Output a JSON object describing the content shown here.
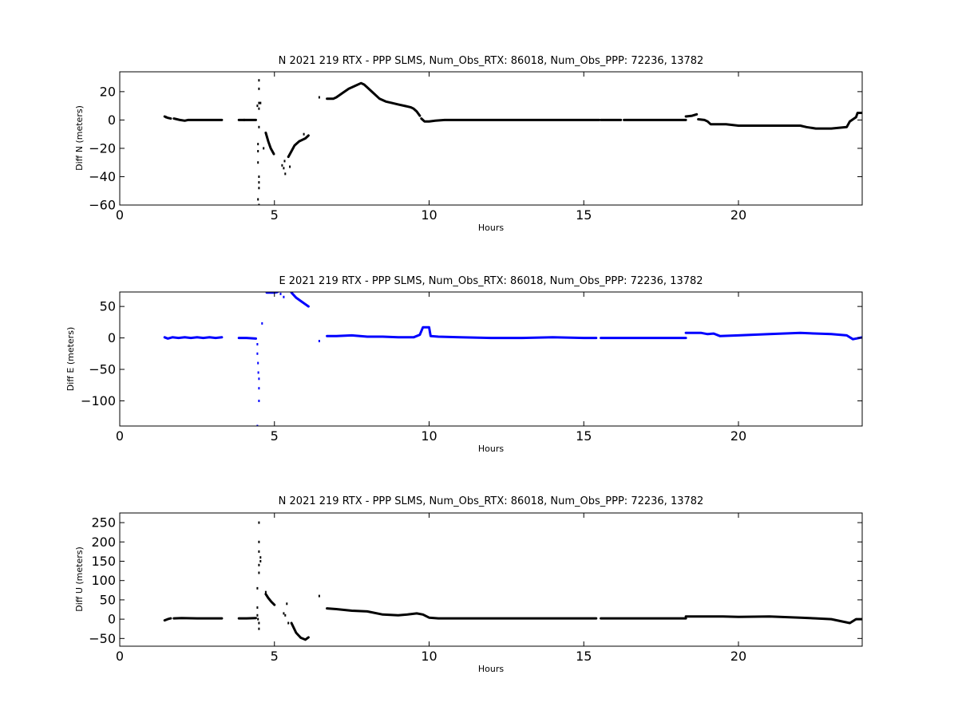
{
  "chart_data": [
    {
      "type": "scatter",
      "title": "N 2021 219 RTX - PPP  SLMS, Num_Obs_RTX: 86018, Num_Obs_PPP: 72236, 13782",
      "xlabel": "Hours",
      "ylabel": "Diff N (meters)",
      "xlim": [
        0,
        24
      ],
      "ylim": [
        -60,
        34
      ],
      "xticks": [
        0,
        5,
        10,
        15,
        20
      ],
      "xtick_labels": [
        "0",
        "5",
        "10",
        "15",
        "20"
      ],
      "yticks": [
        20,
        0,
        -20,
        -40,
        -60
      ],
      "ytick_labels": [
        "20",
        "0",
        "−20",
        "−40",
        "−60"
      ],
      "grid": false,
      "color": "#000000",
      "segments": [
        [
          [
            1.45,
            2.5
          ],
          [
            1.55,
            1.5
          ],
          [
            1.65,
            1.0
          ]
        ],
        [
          [
            1.75,
            1.0
          ],
          [
            1.85,
            0.5
          ],
          [
            1.95,
            0.0
          ],
          [
            2.1,
            -0.5
          ],
          [
            2.2,
            0.0
          ],
          [
            2.4,
            0.0
          ],
          [
            2.7,
            0.0
          ],
          [
            3.0,
            0.0
          ],
          [
            3.3,
            0.0
          ]
        ],
        [
          [
            3.85,
            0.0
          ],
          [
            4.1,
            0.0
          ],
          [
            4.4,
            0.0
          ]
        ],
        [
          [
            4.72,
            -9
          ],
          [
            4.8,
            -15
          ],
          [
            4.88,
            -20
          ],
          [
            4.98,
            -24
          ]
        ],
        [
          [
            5.45,
            -26
          ],
          [
            5.55,
            -22
          ],
          [
            5.65,
            -18
          ],
          [
            5.8,
            -15
          ],
          [
            6.0,
            -13
          ],
          [
            6.1,
            -11
          ]
        ],
        [
          [
            6.7,
            15
          ],
          [
            6.9,
            15
          ],
          [
            7.0,
            16
          ],
          [
            7.2,
            19
          ],
          [
            7.4,
            22
          ],
          [
            7.6,
            24
          ],
          [
            7.8,
            26
          ],
          [
            7.9,
            25
          ],
          [
            8.0,
            23
          ],
          [
            8.2,
            19
          ],
          [
            8.4,
            15
          ],
          [
            8.6,
            13
          ],
          [
            8.8,
            12
          ],
          [
            9.0,
            11
          ],
          [
            9.2,
            10
          ],
          [
            9.4,
            9
          ],
          [
            9.5,
            8
          ],
          [
            9.6,
            6
          ],
          [
            9.7,
            3
          ]
        ],
        [
          [
            9.75,
            1
          ],
          [
            9.85,
            -1
          ],
          [
            10.0,
            -1
          ],
          [
            10.2,
            -0.5
          ],
          [
            10.5,
            0
          ],
          [
            11,
            0
          ],
          [
            12,
            0
          ],
          [
            13,
            0
          ],
          [
            14,
            0
          ],
          [
            15,
            0
          ],
          [
            15.5,
            0
          ]
        ],
        [
          [
            15.55,
            0
          ],
          [
            16.0,
            0
          ],
          [
            16.2,
            0
          ]
        ],
        [
          [
            16.3,
            0
          ],
          [
            17,
            0
          ],
          [
            18,
            0
          ],
          [
            18.3,
            0
          ]
        ],
        [
          [
            18.3,
            2.5
          ],
          [
            18.5,
            3
          ],
          [
            18.65,
            4
          ]
        ],
        [
          [
            18.7,
            0.5
          ],
          [
            18.9,
            0
          ],
          [
            19.0,
            -1
          ],
          [
            19.1,
            -3
          ],
          [
            19.6,
            -3
          ],
          [
            20.0,
            -4
          ],
          [
            21,
            -4
          ],
          [
            22,
            -4
          ],
          [
            22.2,
            -5
          ],
          [
            22.5,
            -6
          ],
          [
            23,
            -6
          ],
          [
            23.5,
            -5
          ],
          [
            23.6,
            -1
          ],
          [
            23.8,
            2
          ],
          [
            23.85,
            5
          ],
          [
            24.0,
            5
          ]
        ]
      ],
      "scatter": [
        [
          1.5,
          2
        ],
        [
          4.02,
          0
        ],
        [
          4.5,
          28
        ],
        [
          4.5,
          22
        ],
        [
          4.5,
          12
        ],
        [
          4.45,
          10
        ],
        [
          4.5,
          8
        ],
        [
          4.55,
          12
        ],
        [
          4.5,
          -5
        ],
        [
          4.47,
          -17
        ],
        [
          4.47,
          -22
        ],
        [
          4.47,
          -30
        ],
        [
          4.5,
          -40
        ],
        [
          4.5,
          -44
        ],
        [
          4.5,
          -48
        ],
        [
          4.47,
          -56
        ],
        [
          4.5,
          -60
        ],
        [
          4.65,
          -20
        ],
        [
          5.25,
          -32
        ],
        [
          5.3,
          -34
        ],
        [
          5.33,
          -29
        ],
        [
          5.35,
          -38
        ],
        [
          5.5,
          -33
        ],
        [
          5.95,
          -10
        ],
        [
          6.45,
          16
        ]
      ]
    },
    {
      "type": "scatter",
      "title": "E 2021 219 RTX - PPP  SLMS, Num_Obs_RTX: 86018, Num_Obs_PPP: 72236, 13782",
      "xlabel": "Hours",
      "ylabel": "Diff E (meters)",
      "xlim": [
        0,
        24
      ],
      "ylim": [
        -140,
        73
      ],
      "xticks": [
        0,
        5,
        10,
        15,
        20
      ],
      "xtick_labels": [
        "0",
        "5",
        "10",
        "15",
        "20"
      ],
      "yticks": [
        50,
        0,
        -50,
        -100
      ],
      "ytick_labels": [
        "50",
        "0",
        "−50",
        "−100"
      ],
      "grid": false,
      "color": "#0000ff",
      "segments": [
        [
          [
            1.45,
            1
          ],
          [
            1.55,
            -1
          ],
          [
            1.7,
            1
          ],
          [
            1.9,
            0
          ],
          [
            2.1,
            1
          ],
          [
            2.3,
            0
          ],
          [
            2.5,
            1
          ],
          [
            2.7,
            0
          ],
          [
            2.9,
            1
          ],
          [
            3.1,
            0
          ],
          [
            3.3,
            1
          ]
        ],
        [
          [
            3.85,
            0
          ],
          [
            4.1,
            0
          ],
          [
            4.4,
            -1
          ]
        ],
        [
          [
            4.75,
            72
          ],
          [
            5.0,
            72
          ],
          [
            5.1,
            73
          ]
        ],
        [
          [
            5.55,
            72
          ],
          [
            5.7,
            64
          ],
          [
            5.9,
            57
          ],
          [
            6.1,
            50
          ]
        ],
        [
          [
            6.7,
            3
          ],
          [
            7.0,
            3
          ],
          [
            7.5,
            4
          ],
          [
            8.0,
            2
          ],
          [
            8.5,
            2
          ],
          [
            9.0,
            1
          ],
          [
            9.5,
            1
          ],
          [
            9.7,
            5
          ],
          [
            9.8,
            17
          ],
          [
            10.0,
            17
          ],
          [
            10.05,
            3
          ],
          [
            10.3,
            2
          ],
          [
            11,
            1
          ],
          [
            12,
            0
          ],
          [
            13,
            0
          ],
          [
            14,
            1
          ],
          [
            15,
            0
          ],
          [
            15.4,
            0
          ]
        ],
        [
          [
            15.55,
            0
          ],
          [
            16,
            0
          ],
          [
            17,
            0
          ],
          [
            18,
            0
          ],
          [
            18.3,
            0
          ]
        ],
        [
          [
            18.3,
            8
          ],
          [
            18.8,
            8
          ],
          [
            19.0,
            6
          ],
          [
            19.2,
            7
          ],
          [
            19.4,
            3
          ],
          [
            20,
            4
          ],
          [
            21,
            6
          ],
          [
            22,
            8
          ],
          [
            23,
            6
          ],
          [
            23.5,
            4
          ],
          [
            23.7,
            -2
          ],
          [
            24,
            1
          ]
        ]
      ],
      "scatter": [
        [
          4.45,
          -10
        ],
        [
          4.45,
          -25
        ],
        [
          4.47,
          -40
        ],
        [
          4.48,
          -55
        ],
        [
          4.5,
          -65
        ],
        [
          4.5,
          -80
        ],
        [
          4.5,
          -100
        ],
        [
          4.45,
          -140
        ],
        [
          4.6,
          23
        ],
        [
          5.2,
          70
        ],
        [
          5.3,
          65
        ],
        [
          6.45,
          -5
        ]
      ]
    },
    {
      "type": "scatter",
      "title": "N 2021 219 RTX - PPP  SLMS, Num_Obs_RTX: 86018, Num_Obs_PPP: 72236, 13782",
      "xlabel": "Hours",
      "ylabel": "Diff U (meters)",
      "xlim": [
        0,
        24
      ],
      "ylim": [
        -70,
        275
      ],
      "xticks": [
        0,
        5,
        10,
        15,
        20
      ],
      "xtick_labels": [
        "0",
        "5",
        "10",
        "15",
        "20"
      ],
      "yticks": [
        250,
        200,
        150,
        100,
        50,
        0,
        -50
      ],
      "ytick_labels": [
        "250",
        "200",
        "150",
        "100",
        "50",
        "0",
        "−50"
      ],
      "grid": false,
      "color": "#000000",
      "segments": [
        [
          [
            1.45,
            -3
          ],
          [
            1.55,
            0
          ],
          [
            1.65,
            2
          ]
        ],
        [
          [
            1.75,
            2
          ],
          [
            2.0,
            3
          ],
          [
            2.5,
            2
          ],
          [
            3.0,
            2
          ],
          [
            3.3,
            2
          ]
        ],
        [
          [
            3.85,
            2
          ],
          [
            4.1,
            2
          ],
          [
            4.4,
            3
          ]
        ],
        [
          [
            4.72,
            65
          ],
          [
            4.8,
            55
          ],
          [
            4.9,
            45
          ],
          [
            5.0,
            37
          ]
        ],
        [
          [
            5.55,
            -10
          ],
          [
            5.7,
            -35
          ],
          [
            5.85,
            -48
          ],
          [
            6.0,
            -53
          ],
          [
            6.1,
            -47
          ]
        ],
        [
          [
            6.7,
            28
          ],
          [
            7.0,
            26
          ],
          [
            7.5,
            22
          ],
          [
            8.0,
            20
          ],
          [
            8.5,
            12
          ],
          [
            9.0,
            10
          ],
          [
            9.3,
            12
          ],
          [
            9.6,
            15
          ],
          [
            9.8,
            12
          ],
          [
            10.0,
            4
          ],
          [
            10.3,
            2
          ],
          [
            11,
            2
          ],
          [
            12,
            2
          ],
          [
            13,
            2
          ],
          [
            14,
            2
          ],
          [
            15,
            2
          ],
          [
            15.4,
            2
          ]
        ],
        [
          [
            15.55,
            2
          ],
          [
            16,
            2
          ],
          [
            17,
            2
          ],
          [
            18,
            2
          ],
          [
            18.3,
            2
          ]
        ],
        [
          [
            18.3,
            7
          ],
          [
            18.8,
            7
          ],
          [
            19.5,
            7
          ],
          [
            20,
            6
          ],
          [
            21,
            7
          ],
          [
            22,
            4
          ],
          [
            22.5,
            2
          ],
          [
            23,
            0
          ],
          [
            23.6,
            -10
          ],
          [
            23.8,
            0
          ],
          [
            24,
            0
          ]
        ]
      ],
      "scatter": [
        [
          4.45,
          30
        ],
        [
          4.45,
          10
        ],
        [
          4.47,
          0
        ],
        [
          4.5,
          -10
        ],
        [
          4.5,
          -25
        ],
        [
          4.45,
          80
        ],
        [
          4.5,
          120
        ],
        [
          4.5,
          140
        ],
        [
          4.55,
          160
        ],
        [
          4.5,
          175
        ],
        [
          4.5,
          200
        ],
        [
          4.5,
          250
        ],
        [
          4.55,
          150
        ],
        [
          4.72,
          70
        ],
        [
          5.3,
          15
        ],
        [
          5.35,
          10
        ],
        [
          5.4,
          40
        ],
        [
          5.45,
          -10
        ],
        [
          6.45,
          60
        ]
      ]
    }
  ]
}
